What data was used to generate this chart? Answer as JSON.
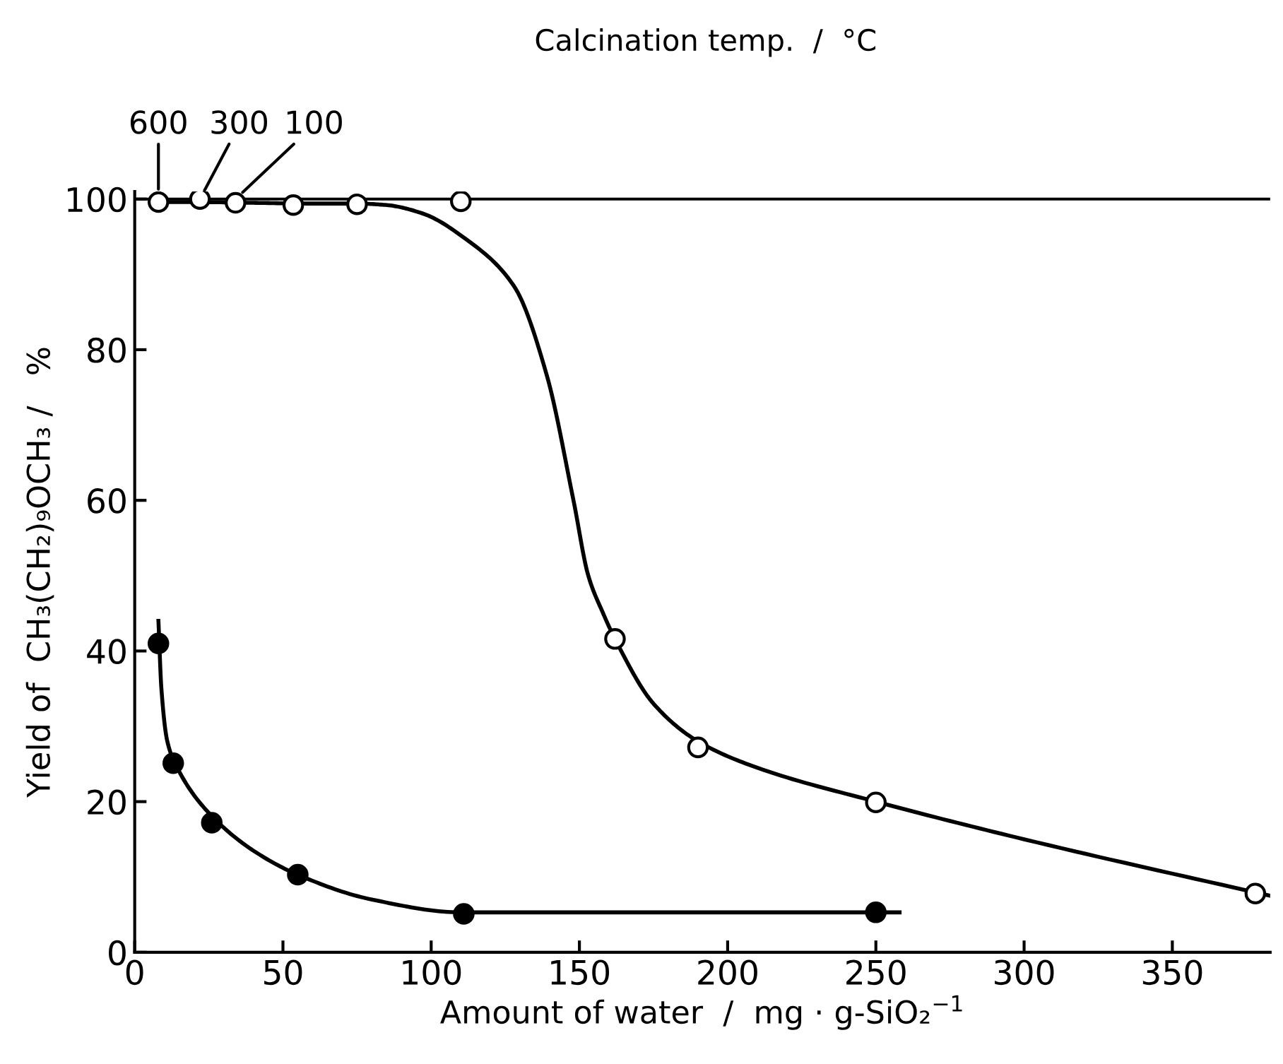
{
  "chart_data": {
    "type": "scatter",
    "title": "Calcination temp.  /  °C",
    "xlabel": "Amount of water  /  mg · g-SiO₂$^{−1}$",
    "ylabel": "Yield of  CH₃(CH₂)₉OCH₃ /   %",
    "xlim": [
      0,
      383
    ],
    "ylim": [
      0,
      101
    ],
    "xticks": [
      0,
      50,
      100,
      150,
      200,
      250,
      300,
      350
    ],
    "yticks": [
      0,
      20,
      40,
      60,
      80,
      100
    ],
    "grid": false,
    "legend": false,
    "series": [
      {
        "type": "line",
        "marker": "none",
        "color": "#000000",
        "x": [
          8,
          20,
          40,
          60,
          75,
          85,
          97,
          112,
          128,
          139,
          148,
          153,
          158,
          162,
          175,
          190,
          210,
          250,
          300,
          383
        ],
        "values": [
          99.6,
          99.6,
          99.5,
          99.4,
          99.4,
          99.2,
          98.1,
          94.6,
          88.4,
          76.6,
          60,
          50,
          45,
          41.6,
          33,
          28,
          24.5,
          20,
          15,
          7.5
        ]
      },
      {
        "type": "line",
        "marker": "none",
        "color": "#000000",
        "x": [
          8,
          9,
          11,
          15,
          25,
          40,
          55,
          80,
          110,
          258
        ],
        "values": [
          44,
          35,
          28,
          24,
          18.5,
          13.5,
          10.3,
          7,
          5.3,
          5.3
        ]
      },
      {
        "marker": "circle",
        "color": "#ffffff",
        "x": [
          8,
          22,
          34,
          53.5,
          75,
          110,
          162,
          190,
          250,
          378
        ],
        "values": [
          99.6,
          100,
          99.5,
          99.2,
          99.3,
          99.7,
          41.6,
          27.2,
          19.9,
          7.8
        ]
      },
      {
        "marker": "circle",
        "color": "#000000",
        "x": [
          8,
          13,
          26,
          55,
          111,
          250
        ],
        "values": [
          41,
          25.1,
          17.2,
          10.3,
          5.1,
          5.3
        ]
      }
    ],
    "ref_lines": [
      {
        "axis": "y",
        "value": 100,
        "color": "#000000"
      }
    ],
    "annotations": [
      {
        "text": "600",
        "x": 8,
        "y": 100
      },
      {
        "text": "300",
        "x": 22,
        "y": 100
      },
      {
        "text": "100",
        "x": 34,
        "y": 100
      }
    ]
  }
}
